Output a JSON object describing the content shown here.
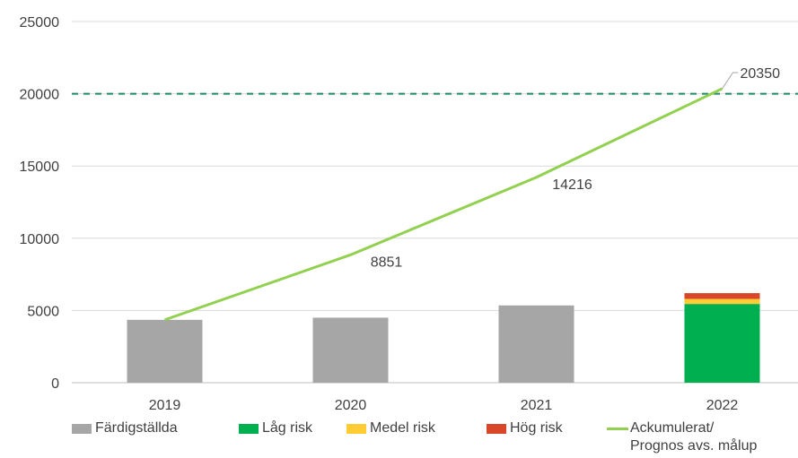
{
  "chart_data": {
    "type": "bar",
    "categories": [
      "2019",
      "2020",
      "2021",
      "2022"
    ],
    "ylim": [
      0,
      25000
    ],
    "yticks": [
      0,
      5000,
      10000,
      15000,
      20000,
      25000
    ],
    "grid": true,
    "legend_position": "bottom",
    "series": [
      {
        "name": "Färdigställda",
        "kind": "bar",
        "color": "#a6a6a6",
        "values": [
          4350,
          4500,
          5350,
          0
        ]
      },
      {
        "name": "Låg risk",
        "kind": "bar",
        "color": "#00b050",
        "values": [
          0,
          0,
          0,
          5450
        ]
      },
      {
        "name": "Medel risk",
        "kind": "bar",
        "color": "#ffcc33",
        "values": [
          0,
          0,
          0,
          350
        ]
      },
      {
        "name": "Hög risk",
        "kind": "bar",
        "color": "#d9472b",
        "values": [
          0,
          0,
          0,
          400
        ]
      },
      {
        "name": "Ackumulerat/\nPrognos avs. målup",
        "kind": "line",
        "color": "#92d050",
        "values": [
          4350,
          8851,
          14216,
          20350
        ]
      }
    ],
    "data_labels": [
      {
        "category": "2020",
        "value": 8851,
        "text": "8851"
      },
      {
        "category": "2021",
        "value": 14216,
        "text": "14216"
      },
      {
        "category": "2022",
        "value": 20350,
        "text": "20350"
      }
    ],
    "reference_line": {
      "value": 20000,
      "style": "dashed",
      "color": "#1f8a6b"
    }
  }
}
